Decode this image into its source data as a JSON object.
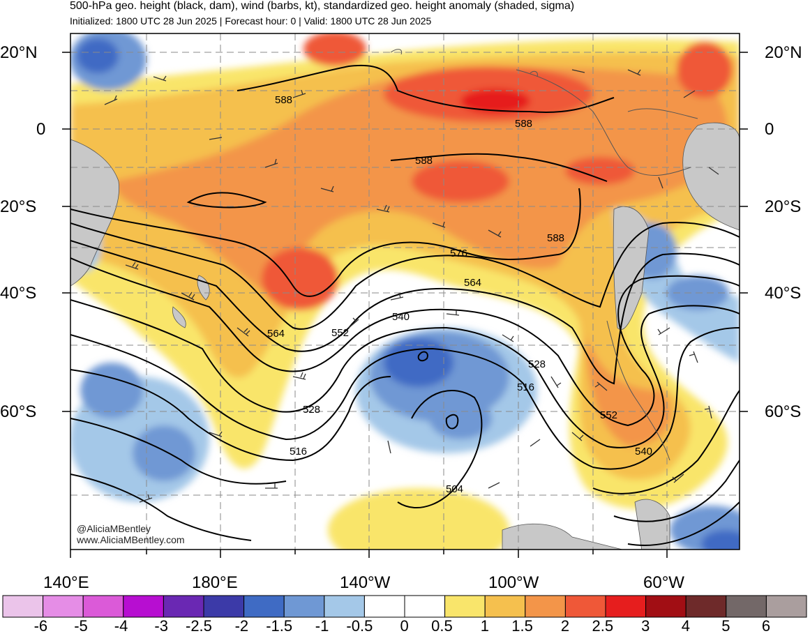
{
  "header": {
    "title": "500-hPa geo. height (black, dam), wind (barbs, kt), standardized geo. height anomaly (shaded, sigma)",
    "subtitle": "Initialized: 1800 UTC 28 Jun 2025 | Forecast hour: 0 | Valid: 1800 UTC 28 Jun 2025"
  },
  "map": {
    "lat_labels": [
      "20°N",
      "0",
      "20°S",
      "40°S",
      "60°S"
    ],
    "lon_labels": [
      "140°E",
      "180°E",
      "140°W",
      "100°W",
      "60°W"
    ],
    "contour_labels": [
      "588",
      "588",
      "588",
      "588",
      "576",
      "564",
      "564",
      "552",
      "540",
      "528",
      "516",
      "552",
      "540",
      "528",
      "516",
      "504"
    ],
    "credit_line1": "@AliciaMBentley",
    "credit_line2": "www.AliciaMBentley.com"
  },
  "colorbar": {
    "labels": [
      "-6",
      "-5",
      "-4",
      "-3",
      "-2.5",
      "-2",
      "-1.5",
      "-1",
      "-0.5",
      "0",
      "0.5",
      "1",
      "1.5",
      "2",
      "2.5",
      "3",
      "4",
      "5",
      "6"
    ],
    "colors": [
      "#ebc4ea",
      "#e58de6",
      "#db5ad8",
      "#b70ed1",
      "#6a28b3",
      "#3c3aa8",
      "#3f6bc4",
      "#6f98d4",
      "#a4c8e8",
      "#ffffff",
      "#ffffff",
      "#f9e56b",
      "#f5c04e",
      "#f39549",
      "#ef5838",
      "#e61e1e",
      "#a10e14",
      "#6e2a2a",
      "#736868",
      "#aa9e9e"
    ]
  }
}
